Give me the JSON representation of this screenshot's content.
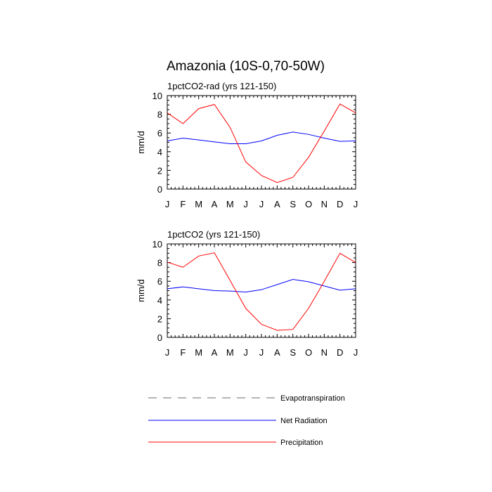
{
  "chart_data": {
    "title": "Amazonia (10S-0,70-50W)",
    "type": "line",
    "panels": [
      {
        "subtitle": "1pctCO2-rad (yrs 121-150)",
        "ylabel": "mm/d",
        "ylim": [
          0,
          10
        ],
        "yticks": [
          "0",
          "2",
          "4",
          "6",
          "8",
          "10"
        ],
        "categories": [
          "J",
          "F",
          "M",
          "A",
          "M",
          "J",
          "J",
          "A",
          "S",
          "O",
          "N",
          "D",
          "J"
        ],
        "series": [
          {
            "name": "Net Radiation",
            "values": [
              5.15,
              5.45,
              5.25,
              5.05,
              4.85,
              4.85,
              5.15,
              5.75,
              6.1,
              5.85,
              5.45,
              5.1,
              5.15
            ]
          },
          {
            "name": "Precipitation",
            "values": [
              8.15,
              7.0,
              8.6,
              9.05,
              6.6,
              2.9,
              1.45,
              0.7,
              1.25,
              3.4,
              6.2,
              9.1,
              8.15
            ]
          }
        ]
      },
      {
        "subtitle": "1pctCO2 (yrs 121-150)",
        "ylabel": "mm/d",
        "ylim": [
          0,
          10
        ],
        "yticks": [
          "0",
          "2",
          "4",
          "6",
          "8",
          "10"
        ],
        "categories": [
          "J",
          "F",
          "M",
          "A",
          "M",
          "J",
          "J",
          "A",
          "S",
          "O",
          "N",
          "D",
          "J"
        ],
        "series": [
          {
            "name": "Net Radiation",
            "values": [
              5.2,
              5.4,
              5.2,
              5.0,
              4.95,
              4.85,
              5.1,
              5.65,
              6.2,
              5.95,
              5.5,
              5.05,
              5.2
            ]
          },
          {
            "name": "Precipitation",
            "values": [
              8.05,
              7.5,
              8.7,
              9.05,
              6.1,
              3.1,
              1.4,
              0.75,
              0.85,
              3.1,
              6.0,
              9.0,
              8.0
            ]
          }
        ]
      }
    ],
    "legend": [
      {
        "name": "Evapotranspiration",
        "color": "#888888",
        "style": "dashed"
      },
      {
        "name": "Net Radiation",
        "color": "#0000ff",
        "style": "solid"
      },
      {
        "name": "Precipitation",
        "color": "#ff0000",
        "style": "solid"
      }
    ]
  }
}
